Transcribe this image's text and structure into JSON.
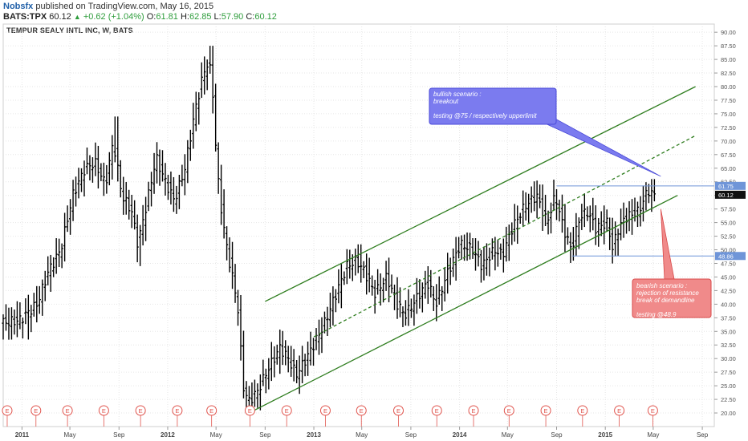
{
  "header": {
    "author": "Nobsfx",
    "published": "published on TradingView.com, May 16, 2015",
    "symbol": "BATS:TPX",
    "last": "60.12",
    "change": "+0.62 (+1.04%)",
    "open_label": "O:",
    "open": "61.81",
    "high_label": "H:",
    "high": "62.85",
    "low_label": "L:",
    "low": "57.90",
    "close_label": "C:",
    "close": "60.12"
  },
  "colors": {
    "price_bars": "#000000",
    "channel": "#2e7d1e",
    "levels": "#6f95d8",
    "bullish_box": "#7b7bef",
    "bearish_box": "#f08a8a",
    "earnings": "#e0544d"
  },
  "chart_data": {
    "type": "ohlc",
    "title": "TEMPUR SEALY INTL INC, W, BATS",
    "y_range": [
      17.5,
      91.5
    ],
    "y_ticks": [
      "20.00",
      "22.50",
      "25.00",
      "27.50",
      "30.00",
      "32.50",
      "35.00",
      "37.50",
      "40.00",
      "42.50",
      "45.00",
      "47.50",
      "50.00",
      "52.50",
      "55.00",
      "57.50",
      "60.00",
      "62.50",
      "65.00",
      "67.50",
      "70.00",
      "72.50",
      "75.00",
      "77.50",
      "80.00",
      "82.50",
      "85.00",
      "87.50",
      "90.00"
    ],
    "x_range": [
      "2010-11-15",
      "2015-10-01"
    ],
    "x_ticks": [
      {
        "label": "2011",
        "date": "2011-01-01"
      },
      {
        "label": "May",
        "date": "2011-05-01"
      },
      {
        "label": "Sep",
        "date": "2011-09-01"
      },
      {
        "label": "2012",
        "date": "2012-01-01"
      },
      {
        "label": "May",
        "date": "2012-05-01"
      },
      {
        "label": "Sep",
        "date": "2012-09-01"
      },
      {
        "label": "2013",
        "date": "2013-01-01"
      },
      {
        "label": "May",
        "date": "2013-05-01"
      },
      {
        "label": "Sep",
        "date": "2013-09-01"
      },
      {
        "label": "2014",
        "date": "2014-01-01"
      },
      {
        "label": "May",
        "date": "2014-05-01"
      },
      {
        "label": "Sep",
        "date": "2014-09-01"
      },
      {
        "label": "2015",
        "date": "2015-01-01"
      },
      {
        "label": "May",
        "date": "2015-05-01"
      },
      {
        "label": "Sep",
        "date": "2015-09-01"
      }
    ],
    "price_path": [
      [
        "2010-11-15",
        36.5
      ],
      [
        "2011-01-01",
        37
      ],
      [
        "2011-02-15",
        40
      ],
      [
        "2011-03-15",
        46
      ],
      [
        "2011-04-15",
        50
      ],
      [
        "2011-05-15",
        60
      ],
      [
        "2011-06-15",
        65
      ],
      [
        "2011-07-10",
        66
      ],
      [
        "2011-08-05",
        62
      ],
      [
        "2011-08-25",
        70
      ],
      [
        "2011-09-15",
        60
      ],
      [
        "2011-10-10",
        57
      ],
      [
        "2011-10-25",
        51
      ],
      [
        "2011-11-15",
        58
      ],
      [
        "2011-12-10",
        67
      ],
      [
        "2011-12-30",
        63
      ],
      [
        "2012-01-25",
        59
      ],
      [
        "2012-02-20",
        65
      ],
      [
        "2012-03-15",
        75
      ],
      [
        "2012-04-05",
        82
      ],
      [
        "2012-04-20",
        85
      ],
      [
        "2012-05-01",
        78
      ],
      [
        "2012-05-10",
        65
      ],
      [
        "2012-05-25",
        55
      ],
      [
        "2012-06-10",
        48
      ],
      [
        "2012-07-01",
        40
      ],
      [
        "2012-07-15",
        25
      ],
      [
        "2012-07-28",
        22
      ],
      [
        "2012-08-20",
        24
      ],
      [
        "2012-09-15",
        28
      ],
      [
        "2012-10-15",
        32
      ],
      [
        "2012-11-05",
        30
      ],
      [
        "2012-11-25",
        27
      ],
      [
        "2012-12-20",
        30
      ],
      [
        "2013-02-01",
        36
      ],
      [
        "2013-03-05",
        42
      ],
      [
        "2013-04-01",
        47
      ],
      [
        "2013-04-25",
        48
      ],
      [
        "2013-05-15",
        46
      ],
      [
        "2013-06-10",
        42
      ],
      [
        "2013-07-10",
        45
      ],
      [
        "2013-08-05",
        40
      ],
      [
        "2013-08-25",
        38
      ],
      [
        "2013-10-01",
        42
      ],
      [
        "2013-10-20",
        44
      ],
      [
        "2013-11-10",
        40
      ],
      [
        "2013-12-10",
        46
      ],
      [
        "2014-01-10",
        51
      ],
      [
        "2014-02-10",
        50
      ],
      [
        "2014-03-05",
        47
      ],
      [
        "2014-04-05",
        50
      ],
      [
        "2014-04-25",
        49
      ],
      [
        "2014-05-20",
        54
      ],
      [
        "2014-06-20",
        58
      ],
      [
        "2014-07-20",
        60
      ],
      [
        "2014-08-15",
        55
      ],
      [
        "2014-09-05",
        60
      ],
      [
        "2014-09-25",
        54
      ],
      [
        "2014-10-15",
        50
      ],
      [
        "2014-11-05",
        56
      ],
      [
        "2014-11-25",
        57
      ],
      [
        "2014-12-15",
        54
      ],
      [
        "2015-01-15",
        55
      ],
      [
        "2015-01-25",
        50
      ],
      [
        "2015-02-10",
        54
      ],
      [
        "2015-03-01",
        56
      ],
      [
        "2015-04-01",
        57
      ],
      [
        "2015-04-25",
        61
      ],
      [
        "2015-05-10",
        60
      ]
    ],
    "price_extremes": [
      {
        "date": "2011-01-15",
        "low": 33.5
      },
      {
        "date": "2011-08-25",
        "high": 74.5
      },
      {
        "date": "2011-10-25",
        "low": 47
      },
      {
        "date": "2012-04-20",
        "high": 87.5
      },
      {
        "date": "2012-07-28",
        "low": 20.5
      },
      {
        "date": "2013-04-25",
        "high": 51
      },
      {
        "date": "2013-08-25",
        "low": 36
      },
      {
        "date": "2014-07-25",
        "high": 62
      },
      {
        "date": "2014-10-15",
        "low": 48
      },
      {
        "date": "2015-01-25",
        "low": 48.8
      },
      {
        "date": "2015-04-30",
        "high": 63
      }
    ],
    "channel_lines": [
      {
        "name": "upper",
        "style": "solid",
        "from": [
          "2012-09-01",
          40.5
        ],
        "to": [
          "2015-08-15",
          80
        ]
      },
      {
        "name": "middle",
        "style": "dashed",
        "from": [
          "2013-01-01",
          34
        ],
        "to": [
          "2015-08-15",
          71
        ]
      },
      {
        "name": "lower",
        "style": "solid",
        "from": [
          "2012-08-05",
          20.5
        ],
        "to": [
          "2015-07-01",
          60
        ]
      }
    ],
    "level_lines": [
      {
        "value": 61.75,
        "from": "2014-09-01",
        "label": "61.75"
      },
      {
        "value": 48.86,
        "from": "2014-10-10",
        "label": "48.86"
      }
    ],
    "last_price_label": "60.12",
    "earnings_dates": [
      "2010-11-25",
      "2011-02-05",
      "2011-04-25",
      "2011-07-25",
      "2011-10-25",
      "2012-01-25",
      "2012-04-20",
      "2012-07-25",
      "2012-10-25",
      "2013-01-30",
      "2013-04-30",
      "2013-08-01",
      "2013-11-05",
      "2014-02-05",
      "2014-05-05",
      "2014-08-05",
      "2014-11-05",
      "2015-02-05",
      "2015-04-30"
    ],
    "earnings_marker": "E",
    "annotations": [
      {
        "name": "bullish-scenario",
        "text": "bullish scenario :\nbreakout\n\ntesting @75 / respectively upperlimit",
        "pointer_to": [
          "2015-05-20",
          63.5
        ]
      },
      {
        "name": "bearish-scenario",
        "text": "bearish scenario :\nrejection of resistance\nbreak of demandline\n\ntesting @48.9",
        "pointer_to": [
          "2015-05-20",
          57.5
        ]
      }
    ]
  }
}
